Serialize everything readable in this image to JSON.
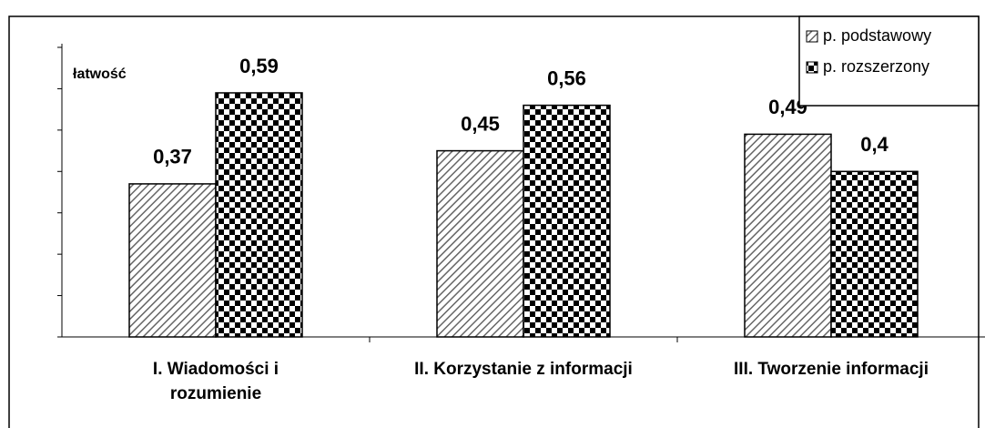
{
  "chart_data": {
    "type": "bar",
    "y_label": "łatwość",
    "categories": [
      "I. Wiadomości i rozumienie",
      "II. Korzystanie z informacji",
      "III. Tworzenie informacji"
    ],
    "series": [
      {
        "name": "p. podstawowy",
        "values": [
          0.37,
          0.45,
          0.49
        ],
        "value_labels": [
          "0,37",
          "0,45",
          "0,49"
        ]
      },
      {
        "name": "p. rozszerzony",
        "values": [
          0.59,
          0.56,
          0.4
        ],
        "value_labels": [
          "0,59",
          "0,56",
          "0,4"
        ]
      }
    ],
    "ylim": [
      0,
      0.7
    ],
    "yticks": [
      0,
      0.1,
      0.2,
      0.3,
      0.4,
      0.5,
      0.6,
      0.7
    ],
    "legend": "top-right"
  }
}
